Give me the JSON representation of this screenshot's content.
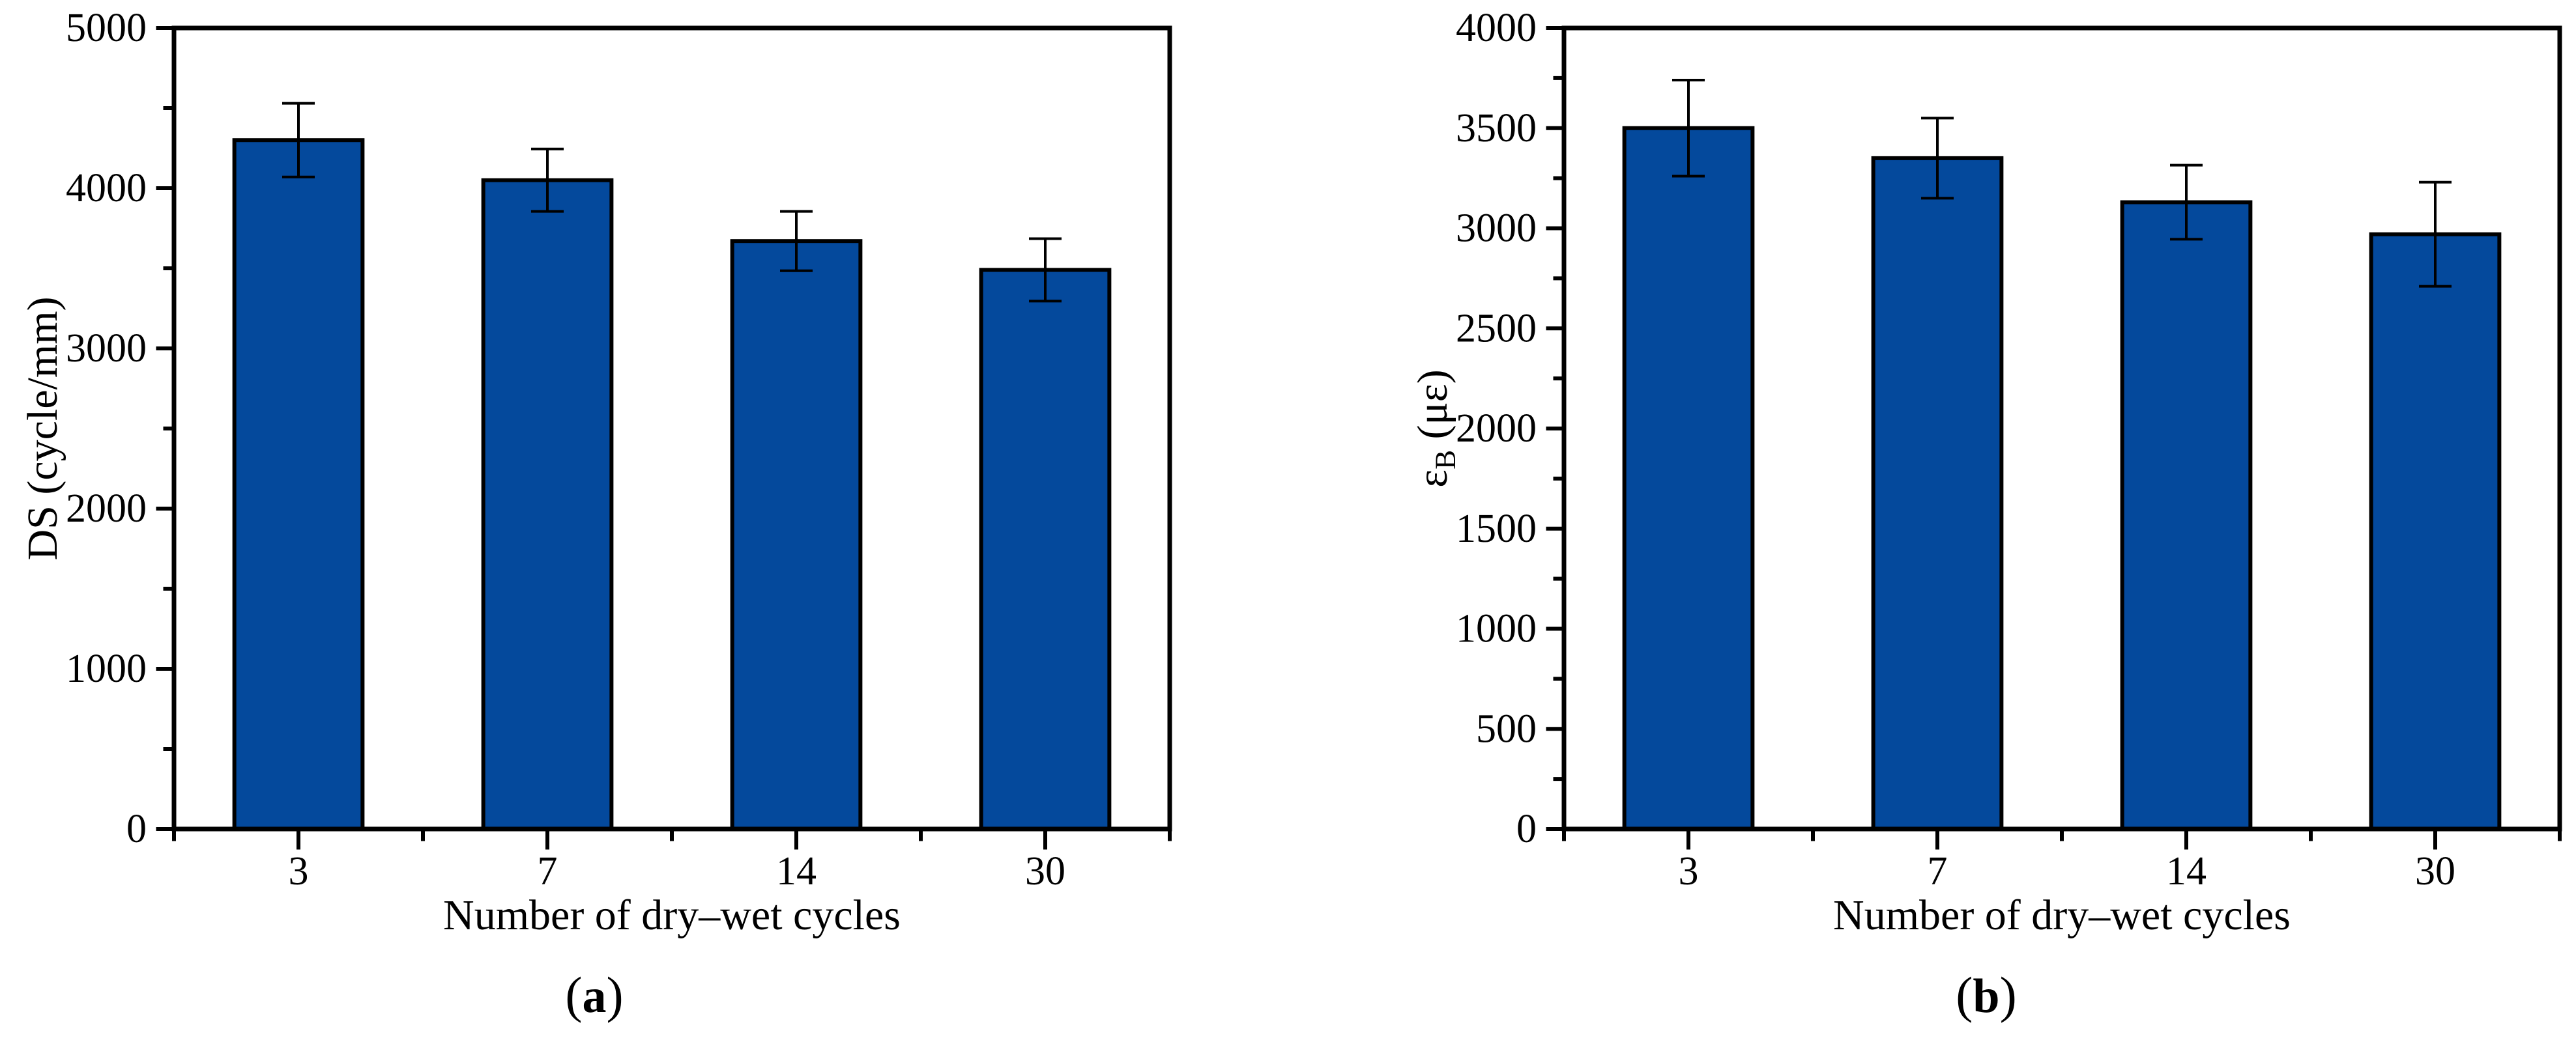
{
  "figure": {
    "background": "#ffffff",
    "bar_color": "#04499c",
    "axis_color": "#000000",
    "text_color": "#000000"
  },
  "chart_data": [
    {
      "type": "bar",
      "panel": "a",
      "caption_open": "(",
      "caption_letter": "a",
      "caption_close": ")",
      "title": "",
      "xlabel": "Number of dry–wet cycles",
      "ylabel_base": "DS (cycle/mm)",
      "ylabel_sub": "",
      "ylabel_unit": "",
      "categories": [
        "3",
        "7",
        "14",
        "30"
      ],
      "values": [
        4300,
        4050,
        3670,
        3490
      ],
      "errors": [
        230,
        195,
        185,
        195
      ],
      "ylim": [
        0,
        5000
      ],
      "ytick_step": 1000,
      "yminor_step": 500,
      "yticklabels": [
        "0",
        "1000",
        "2000",
        "3000",
        "4000",
        "5000"
      ],
      "grid": false,
      "legend": "none",
      "bar_color": "#04499c"
    },
    {
      "type": "bar",
      "panel": "b",
      "caption_open": "(",
      "caption_letter": "b",
      "caption_close": ")",
      "title": "",
      "xlabel": "Number of dry–wet cycles",
      "ylabel_base": "ε",
      "ylabel_sub": "B",
      "ylabel_unit": " (με)",
      "categories": [
        "3",
        "7",
        "14",
        "30"
      ],
      "values": [
        3500,
        3350,
        3130,
        2970
      ],
      "errors": [
        240,
        200,
        185,
        260
      ],
      "ylim": [
        0,
        4000
      ],
      "ytick_step": 500,
      "yminor_step": 250,
      "yticklabels": [
        "0",
        "500",
        "1000",
        "1500",
        "2000",
        "2500",
        "3000",
        "3500",
        "4000"
      ],
      "grid": false,
      "legend": "none",
      "bar_color": "#04499c"
    }
  ]
}
